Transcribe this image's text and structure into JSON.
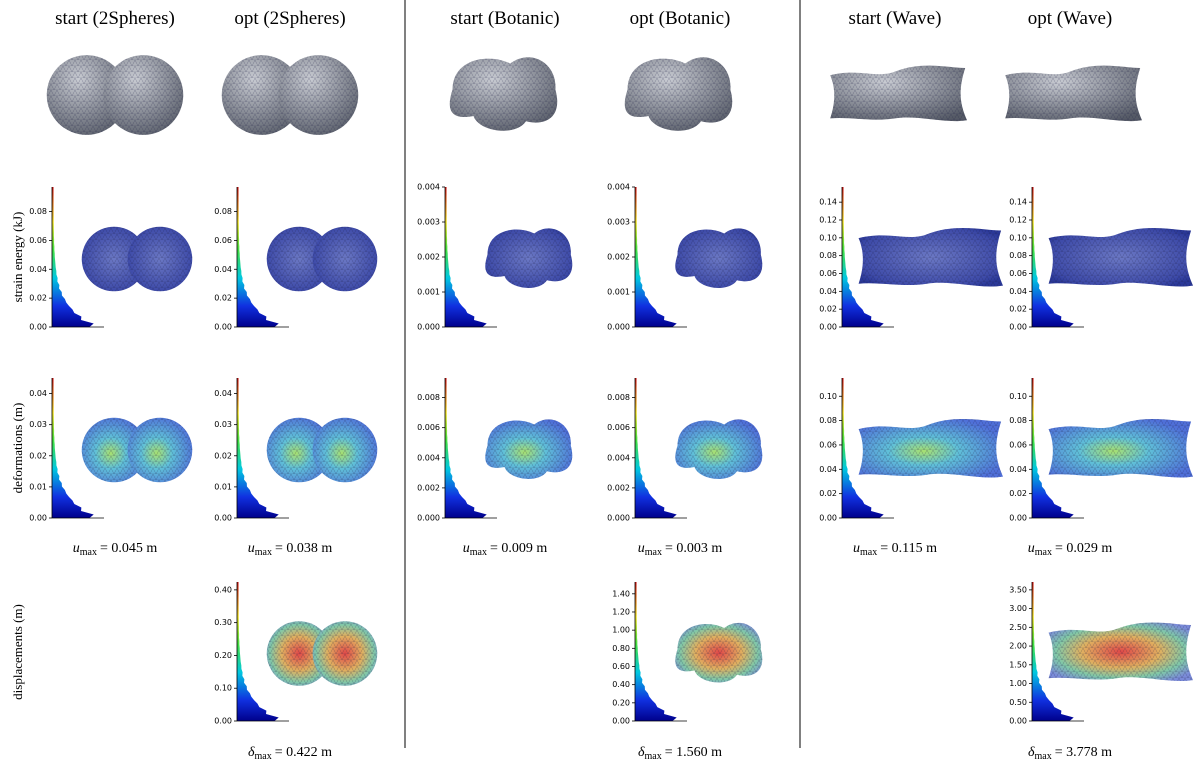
{
  "symbols": {
    "u": "u",
    "delta": "δ",
    "sub": "max"
  },
  "row_labels": {
    "strain": "strain energy (kJ)",
    "deform": "deformations (m)",
    "displacement": "displacements (m)"
  },
  "columns": [
    {
      "title": "start (2Spheres)",
      "strain": {
        "ylim": [
          0,
          0.097
        ],
        "yticks": [
          {
            "value": 0,
            "label": "0.00"
          },
          0.02,
          0.04,
          0.06,
          0.08
        ]
      },
      "deform": {
        "ylim": [
          0,
          0.045
        ],
        "yticks": [
          {
            "value": 0,
            "label": "0.00"
          },
          0.01,
          0.02,
          0.03,
          0.04
        ]
      },
      "u_max": "= 0.045 m"
    },
    {
      "title": "opt (2Spheres)",
      "strain": {
        "ylim": [
          0,
          0.097
        ],
        "yticks": [
          {
            "value": 0,
            "label": "0.00"
          },
          0.02,
          0.04,
          0.06,
          0.08
        ]
      },
      "deform": {
        "ylim": [
          0,
          0.045
        ],
        "yticks": [
          {
            "value": 0,
            "label": "0.00"
          },
          0.01,
          0.02,
          0.03,
          0.04
        ]
      },
      "u_max": "= 0.038 m",
      "displacement": {
        "ylim": [
          0,
          0.424
        ],
        "yticks": [
          {
            "value": 0,
            "label": "0.00"
          },
          {
            "value": 0.1,
            "label": "0.10"
          },
          {
            "value": 0.2,
            "label": "0.20"
          },
          {
            "value": 0.3,
            "label": "0.30"
          },
          {
            "value": 0.4,
            "label": "0.40"
          }
        ]
      },
      "delta_max": "= 0.422 m"
    },
    {
      "title": "start (Botanic)",
      "strain": {
        "ylim": [
          0,
          0.004
        ],
        "yticks": [
          {
            "value": 0,
            "label": "0.000"
          },
          0.001,
          0.002,
          0.003,
          0.004
        ]
      },
      "deform": {
        "ylim": [
          0,
          0.0093
        ],
        "yticks": [
          {
            "value": 0,
            "label": "0.000"
          },
          0.002,
          0.004,
          0.006,
          0.008
        ]
      },
      "u_max": "= 0.009 m"
    },
    {
      "title": "opt (Botanic)",
      "strain": {
        "ylim": [
          0,
          0.004
        ],
        "yticks": [
          {
            "value": 0,
            "label": "0.000"
          },
          0.001,
          0.002,
          0.003,
          0.004
        ]
      },
      "deform": {
        "ylim": [
          0,
          0.0093
        ],
        "yticks": [
          {
            "value": 0,
            "label": "0.000"
          },
          0.002,
          0.004,
          0.006,
          0.008
        ]
      },
      "u_max": "= 0.003 m",
      "displacement": {
        "ylim": [
          0,
          1.53
        ],
        "yticks": [
          {
            "value": 0,
            "label": "0.00"
          },
          {
            "value": 0.2,
            "label": "0.20"
          },
          {
            "value": 0.4,
            "label": "0.40"
          },
          {
            "value": 0.6,
            "label": "0.60"
          },
          {
            "value": 0.8,
            "label": "0.80"
          },
          {
            "value": 1,
            "label": "1.00"
          },
          {
            "value": 1.2,
            "label": "1.20"
          },
          {
            "value": 1.4,
            "label": "1.40"
          }
        ]
      },
      "delta_max": "= 1.560 m"
    },
    {
      "title": "start (Wave)",
      "strain": {
        "ylim": [
          0,
          0.157
        ],
        "yticks": [
          {
            "value": 0,
            "label": "0.00"
          },
          0.02,
          0.04,
          0.06,
          0.08,
          {
            "value": 0.1,
            "label": "0.10"
          },
          0.12,
          0.14
        ]
      },
      "deform": {
        "ylim": [
          0,
          0.115
        ],
        "yticks": [
          {
            "value": 0,
            "label": "0.00"
          },
          0.02,
          0.04,
          0.06,
          0.08,
          {
            "value": 0.1,
            "label": "0.10"
          }
        ]
      },
      "u_max": "= 0.115 m"
    },
    {
      "title": "opt (Wave)",
      "strain": {
        "ylim": [
          0,
          0.157
        ],
        "yticks": [
          {
            "value": 0,
            "label": "0.00"
          },
          0.02,
          0.04,
          0.06,
          0.08,
          {
            "value": 0.1,
            "label": "0.10"
          },
          0.12,
          0.14
        ]
      },
      "deform": {
        "ylim": [
          0,
          0.115
        ],
        "yticks": [
          {
            "value": 0,
            "label": "0.00"
          },
          0.02,
          0.04,
          0.06,
          0.08,
          {
            "value": 0.1,
            "label": "0.10"
          }
        ]
      },
      "u_max": "= 0.029 m",
      "displacement": {
        "ylim": [
          0,
          3.71
        ],
        "yticks": [
          {
            "value": 0,
            "label": "0.00"
          },
          {
            "value": 0.5,
            "label": "0.50"
          },
          {
            "value": 1,
            "label": "1.00"
          },
          {
            "value": 1.5,
            "label": "1.50"
          },
          {
            "value": 2,
            "label": "2.00"
          },
          {
            "value": 2.5,
            "label": "2.50"
          },
          {
            "value": 3,
            "label": "3.00"
          },
          {
            "value": 3.5,
            "label": "3.50"
          }
        ]
      },
      "delta_max": "= 3.778 m"
    }
  ]
}
